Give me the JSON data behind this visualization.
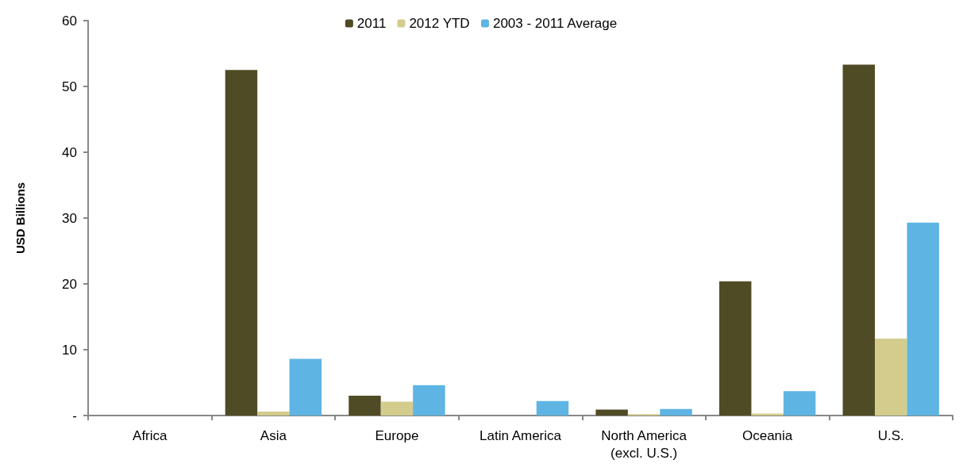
{
  "chart_data": {
    "type": "bar",
    "ylabel": "USD Billions",
    "categories": [
      "Africa",
      "Asia",
      "Europe",
      "Latin America",
      "North America\n(excl. U.S.)",
      "Oceania",
      "U.S."
    ],
    "series": [
      {
        "name": "2011",
        "color": "#4f4b25",
        "values": [
          0,
          52.5,
          3.0,
          0,
          0.9,
          20.4,
          53.3
        ]
      },
      {
        "name": "2012 YTD",
        "color": "#d3cc8c",
        "values": [
          0,
          0.6,
          2.1,
          0,
          0.2,
          0.3,
          11.7
        ]
      },
      {
        "name": "2003 - 2011 Average",
        "color": "#5eb4e3",
        "values": [
          0,
          8.6,
          4.6,
          2.2,
          1.0,
          3.7,
          29.3
        ]
      }
    ],
    "ylim": [
      0,
      60
    ],
    "yticks": [
      {
        "value": 0,
        "label": "-"
      },
      10,
      20,
      30,
      40,
      50,
      60
    ],
    "grid": false,
    "legend": "top"
  }
}
